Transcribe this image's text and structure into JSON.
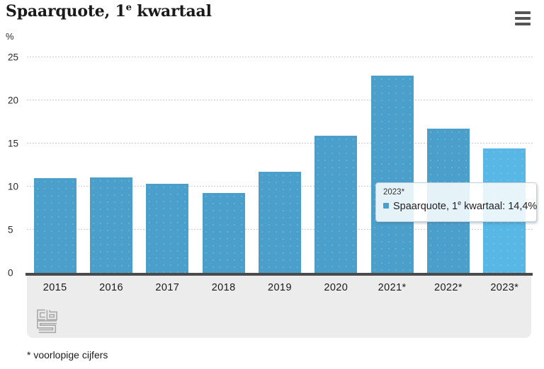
{
  "header": {
    "title_pre": "Spaarquote, 1",
    "title_sup": "e",
    "title_post": " kwartaal",
    "unit_label": "%"
  },
  "chart_data": {
    "type": "bar",
    "title": "Spaarquote, 1e kwartaal",
    "ylabel": "%",
    "xlabel": "",
    "categories": [
      "2015",
      "2016",
      "2017",
      "2018",
      "2019",
      "2020",
      "2021*",
      "2022*",
      "2023*"
    ],
    "series": [
      {
        "name": "Spaarquote, 1e kwartaal",
        "values": [
          11.0,
          11.1,
          10.3,
          9.3,
          11.7,
          15.9,
          22.9,
          16.7,
          14.4
        ]
      }
    ],
    "ylim": [
      0,
      25
    ],
    "yticks": [
      0,
      5,
      10,
      15,
      20,
      25
    ],
    "grid": true,
    "legend_position": "none",
    "highlighted_index": 8,
    "highlighted_category": "2023*",
    "highlighted_value_label": "14,4%"
  },
  "tooltip": {
    "header": "2023*",
    "series_pre": "Spaarquote, 1",
    "series_sup": "e",
    "series_post": " kwartaal: 14,4%"
  },
  "footnote": "* voorlopige cijfers",
  "colors": {
    "bar": "#4AA0CB",
    "bar_highlight": "#58B7E4",
    "grid": "#cccccc",
    "axis_line": "#4a4a4a",
    "band": "#ececec",
    "tooltip_border": "#bcd4e2",
    "logo": "#a9a9a9"
  }
}
